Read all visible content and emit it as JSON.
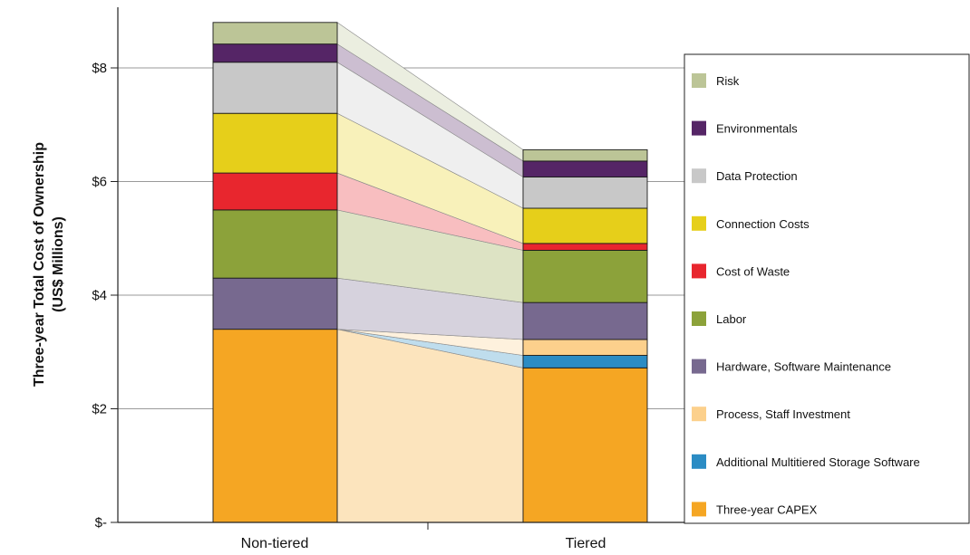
{
  "chart_data": {
    "type": "bar",
    "subtype": "stacked-bar-with-connectors",
    "categories": [
      "Non-tiered",
      "Tiered"
    ],
    "ylabel_lines": [
      "Three-year Total Cost of Ownership",
      "(US$ Millions)"
    ],
    "ylim": [
      0,
      9
    ],
    "yticks": [
      {
        "value": 0,
        "label": "$-"
      },
      {
        "value": 2,
        "label": "$2"
      },
      {
        "value": 4,
        "label": "$4"
      },
      {
        "value": 6,
        "label": "$6"
      },
      {
        "value": 8,
        "label": "$8"
      }
    ],
    "grid": true,
    "legend_position": "right",
    "series": [
      {
        "name": "Three-year  CAPEX",
        "color": "#f5a623",
        "values": [
          3.4,
          2.72
        ]
      },
      {
        "name": "Additional Multitiered Storage Software",
        "color": "#2b8cc4",
        "values": [
          0.0,
          0.22
        ]
      },
      {
        "name": "Process, Staff Investment",
        "color": "#fcd08c",
        "values": [
          0.0,
          0.28
        ]
      },
      {
        "name": "Hardware, Software Maintenance",
        "color": "#77698f",
        "values": [
          0.9,
          0.65
        ]
      },
      {
        "name": " Labor",
        "color": "#8ca23a",
        "values": [
          1.2,
          0.92
        ]
      },
      {
        "name": "Cost of Waste",
        "color": "#e8262e",
        "values": [
          0.65,
          0.12
        ]
      },
      {
        "name": "Connection Costs",
        "color": "#e6cf1a",
        "values": [
          1.05,
          0.62
        ]
      },
      {
        "name": "Data Protection",
        "color": "#c8c8c8",
        "values": [
          0.9,
          0.55
        ]
      },
      {
        "name": "Environmentals",
        "color": "#552566",
        "values": [
          0.32,
          0.28
        ]
      },
      {
        "name": "Risk",
        "color": "#bcc597",
        "values": [
          0.38,
          0.2
        ]
      }
    ]
  }
}
